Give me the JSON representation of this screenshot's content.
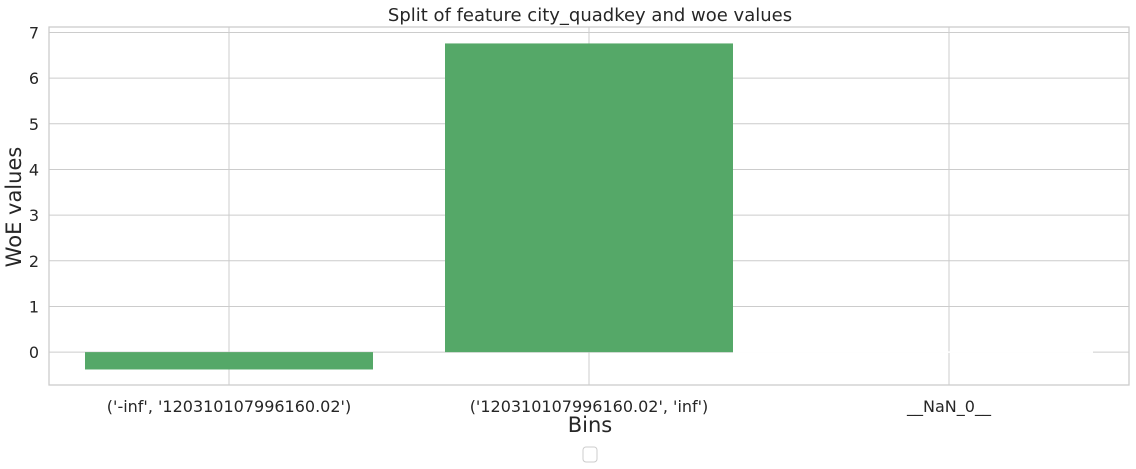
{
  "chart_data": {
    "type": "bar",
    "title": "Split of feature city_quadkey and woe values",
    "xlabel": "Bins",
    "ylabel": "WoE values",
    "categories": [
      "('-inf', '120310107996160.02')",
      "('120310107996160.02', 'inf')",
      "__NaN_0__"
    ],
    "values": [
      -0.38,
      6.76,
      0
    ],
    "ylim": [
      -0.72,
      7.12
    ],
    "yticks": [
      0,
      1,
      2,
      3,
      4,
      5,
      6,
      7
    ],
    "grid": true,
    "legend": {
      "entries": [],
      "placement": "bottom-center"
    },
    "colors": {
      "bar": "#55a868",
      "grid": "#cccccc",
      "text": "#262626"
    }
  }
}
